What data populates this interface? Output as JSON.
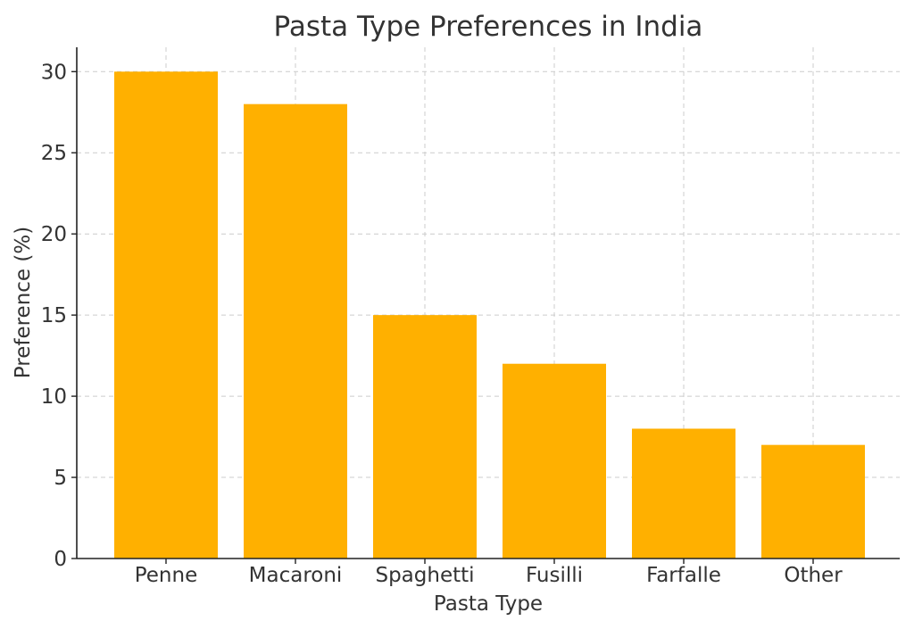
{
  "chart_data": {
    "type": "bar",
    "title": "Pasta Type Preferences in India",
    "xlabel": "Pasta Type",
    "ylabel": "Preference (%)",
    "categories": [
      "Penne",
      "Macaroni",
      "Spaghetti",
      "Fusilli",
      "Farfalle",
      "Other"
    ],
    "values": [
      30,
      28,
      15,
      12,
      8,
      7
    ],
    "ylim": [
      0,
      31.5
    ],
    "yticks": [
      0,
      5,
      10,
      15,
      20,
      25,
      30
    ],
    "grid": true,
    "bar_color": "#FFB000",
    "text_color": "#333333"
  }
}
